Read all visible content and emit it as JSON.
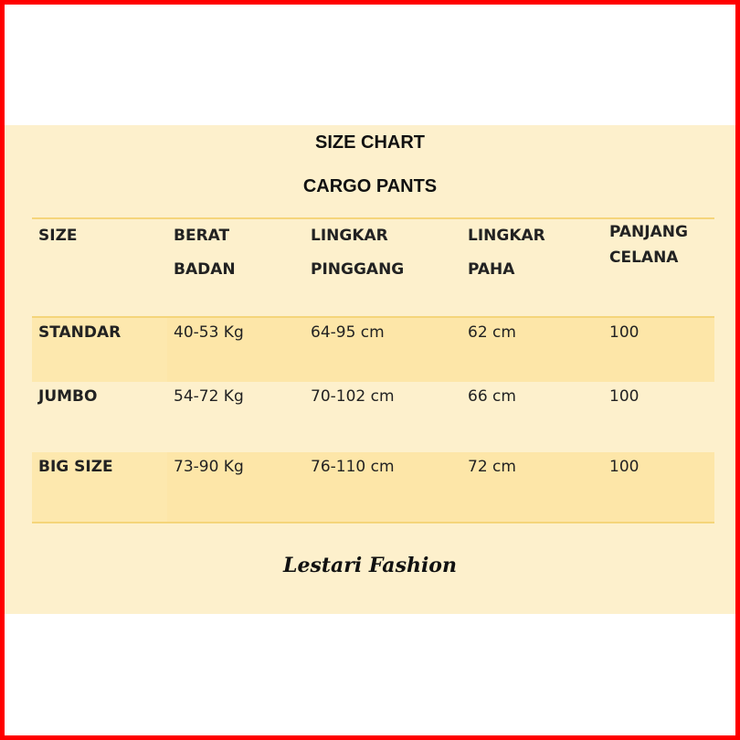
{
  "title": "SIZE CHART",
  "subtitle": "CARGO PANTS",
  "table": {
    "headers": [
      [
        "SIZE",
        ""
      ],
      [
        "BERAT",
        "BADAN"
      ],
      [
        "LINGKAR",
        "PINGGANG"
      ],
      [
        "LINGKAR",
        "PAHA"
      ],
      [
        "PANJANG",
        "CELANA"
      ]
    ],
    "rows": [
      [
        "STANDAR",
        "40-53 Kg",
        "64-95 cm",
        "62 cm",
        "100"
      ],
      [
        "JUMBO",
        "54-72 Kg",
        "70-102 cm",
        "66 cm",
        "100"
      ],
      [
        "BIG SIZE",
        "73-90 Kg",
        "76-110 cm",
        "72 cm",
        "100"
      ]
    ]
  },
  "brand": "Lestari Fashion",
  "colors": {
    "border": "#ff0000",
    "background": "#fdf0cc",
    "row_shade": "#fde6a8",
    "rule": "#f5d57a"
  }
}
